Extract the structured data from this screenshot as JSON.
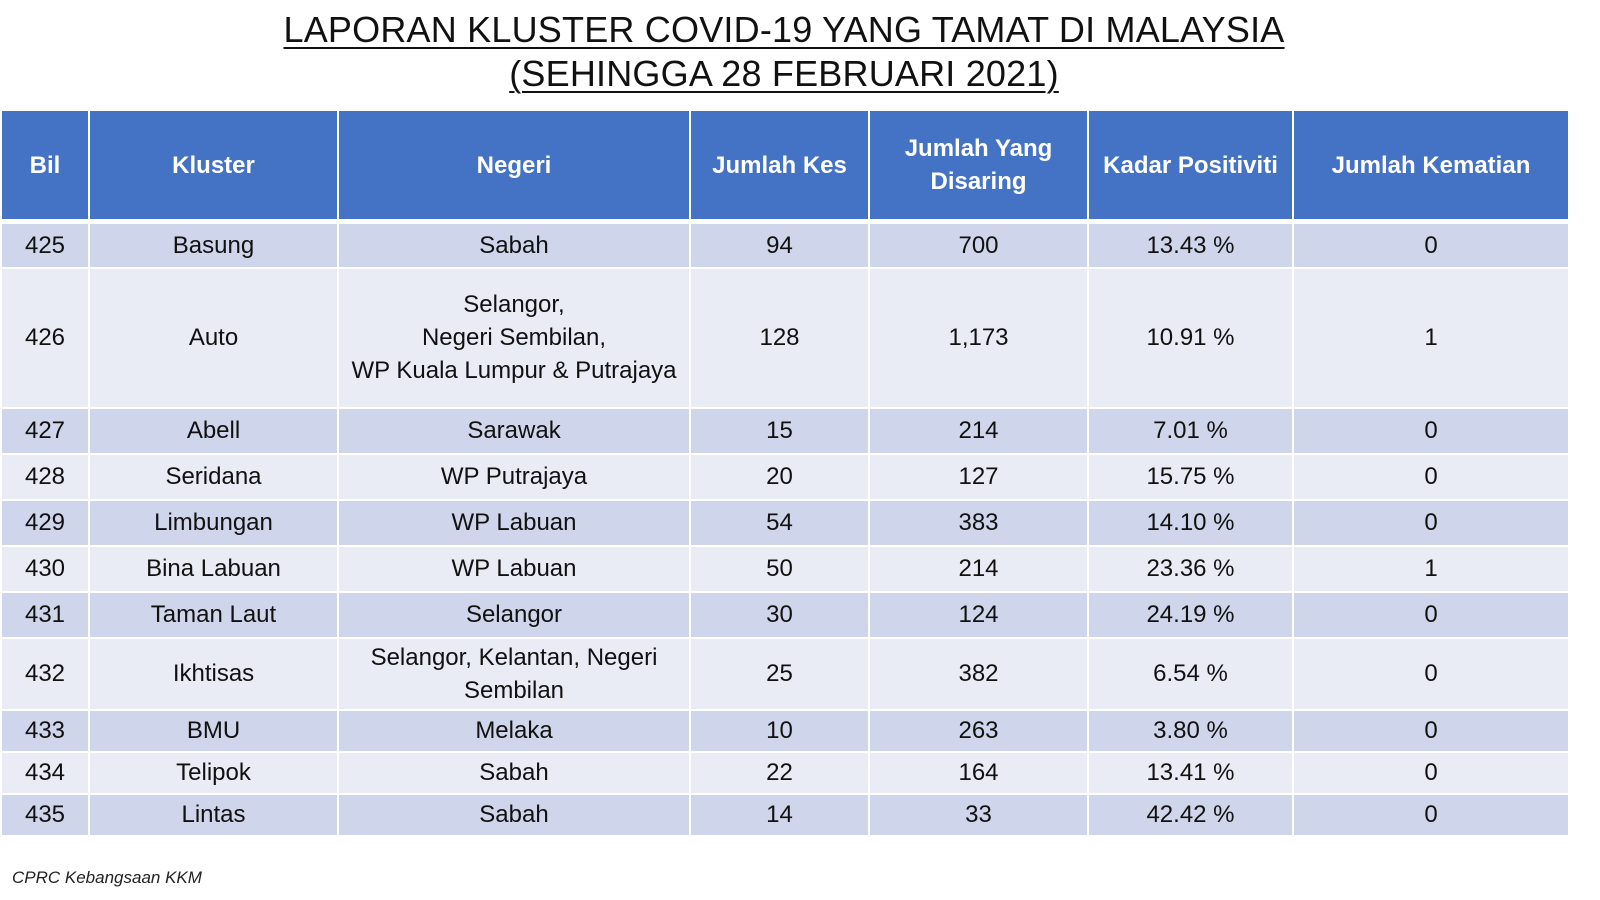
{
  "title": {
    "line1": "LAPORAN KLUSTER COVID-19 YANG TAMAT DI MALAYSIA",
    "line2": "(SEHINGGA 28 FEBRUARI 2021)"
  },
  "table": {
    "headers": {
      "bil": "Bil",
      "kluster": "Kluster",
      "negeri": "Negeri",
      "jumlah_kes": "Jumlah Kes",
      "jumlah_disaring": "Jumlah Yang Disaring",
      "kadar_positiviti": "Kadar Positiviti",
      "jumlah_kematian": "Jumlah Kematian"
    },
    "rows": [
      {
        "bil": "425",
        "kluster": "Basung",
        "negeri": "Sabah",
        "kes": "94",
        "disaring": "700",
        "positiviti": "13.43 %",
        "kematian": "0"
      },
      {
        "bil": "426",
        "kluster": "Auto",
        "negeri": "Selangor,\nNegeri Sembilan,\nWP Kuala Lumpur & Putrajaya",
        "kes": "128",
        "disaring": "1,173",
        "positiviti": "10.91 %",
        "kematian": "1"
      },
      {
        "bil": "427",
        "kluster": "Abell",
        "negeri": "Sarawak",
        "kes": "15",
        "disaring": "214",
        "positiviti": "7.01 %",
        "kematian": "0"
      },
      {
        "bil": "428",
        "kluster": "Seridana",
        "negeri": "WP Putrajaya",
        "kes": "20",
        "disaring": "127",
        "positiviti": "15.75 %",
        "kematian": "0"
      },
      {
        "bil": "429",
        "kluster": "Limbungan",
        "negeri": "WP Labuan",
        "kes": "54",
        "disaring": "383",
        "positiviti": "14.10 %",
        "kematian": "0"
      },
      {
        "bil": "430",
        "kluster": "Bina Labuan",
        "negeri": "WP Labuan",
        "kes": "50",
        "disaring": "214",
        "positiviti": "23.36 %",
        "kematian": "1"
      },
      {
        "bil": "431",
        "kluster": "Taman Laut",
        "negeri": "Selangor",
        "kes": "30",
        "disaring": "124",
        "positiviti": "24.19 %",
        "kematian": "0"
      },
      {
        "bil": "432",
        "kluster": "Ikhtisas",
        "negeri": "Selangor, Kelantan, Negeri\nSembilan",
        "kes": "25",
        "disaring": "382",
        "positiviti": "6.54 %",
        "kematian": "0"
      },
      {
        "bil": "433",
        "kluster": "BMU",
        "negeri": "Melaka",
        "kes": "10",
        "disaring": "263",
        "positiviti": "3.80 %",
        "kematian": "0"
      },
      {
        "bil": "434",
        "kluster": "Telipok",
        "negeri": "Sabah",
        "kes": "22",
        "disaring": "164",
        "positiviti": "13.41 %",
        "kematian": "0"
      },
      {
        "bil": "435",
        "kluster": "Lintas",
        "negeri": "Sabah",
        "kes": "14",
        "disaring": "33",
        "positiviti": "42.42 %",
        "kematian": "0"
      }
    ]
  },
  "footer": {
    "source": "CPRC Kebangsaan KKM"
  },
  "colors": {
    "header_bg": "#4472c4",
    "row_odd_bg": "#cfd5ea",
    "row_even_bg": "#e9ebf5"
  }
}
